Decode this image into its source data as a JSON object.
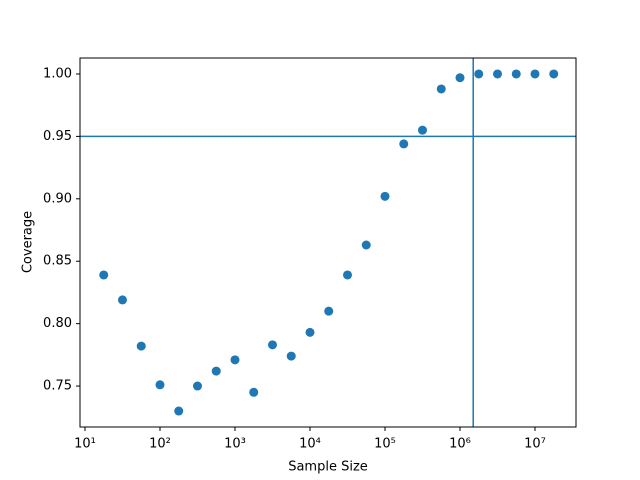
{
  "chart_data": {
    "type": "scatter",
    "x_label": "Sample Size",
    "y_label": "Coverage",
    "x_scale": "log",
    "color": "#1f77b4",
    "series": [
      {
        "x": [
          17.78,
          31.62,
          56.23,
          100,
          177.8,
          316.2,
          562.3,
          1000,
          1778,
          3162,
          5623,
          10000,
          17780,
          31620,
          56230,
          100000,
          177800,
          316200,
          562300,
          1000000,
          1778000,
          3162000,
          5623000,
          10000000,
          17780000
        ],
        "values": [
          0.839,
          0.819,
          0.782,
          0.751,
          0.73,
          0.75,
          0.762,
          0.771,
          0.745,
          0.783,
          0.774,
          0.793,
          0.81,
          0.839,
          0.863,
          0.902,
          0.944,
          0.955,
          0.988,
          0.997,
          1.0,
          1.0,
          1.0,
          1.0,
          1.0
        ]
      }
    ],
    "hlines": [
      0.95
    ],
    "vlines": [
      1500000
    ],
    "xlim": [
      8.58,
      35200000
    ],
    "ylim": [
      0.7172,
      1.0128
    ],
    "xticks": [
      {
        "value": 10,
        "label": "10¹"
      },
      {
        "value": 100,
        "label": "10²"
      },
      {
        "value": 1000,
        "label": "10³"
      },
      {
        "value": 10000,
        "label": "10⁴"
      },
      {
        "value": 100000,
        "label": "10⁵"
      },
      {
        "value": 1000000,
        "label": "10⁶"
      },
      {
        "value": 10000000,
        "label": "10⁷"
      }
    ],
    "yticks": [
      {
        "value": 0.75,
        "label": "0.75"
      },
      {
        "value": 0.8,
        "label": "0.80"
      },
      {
        "value": 0.85,
        "label": "0.85"
      },
      {
        "value": 0.9,
        "label": "0.90"
      },
      {
        "value": 0.95,
        "label": "0.95"
      },
      {
        "value": 1.0,
        "label": "1.00"
      }
    ],
    "grid": false
  }
}
